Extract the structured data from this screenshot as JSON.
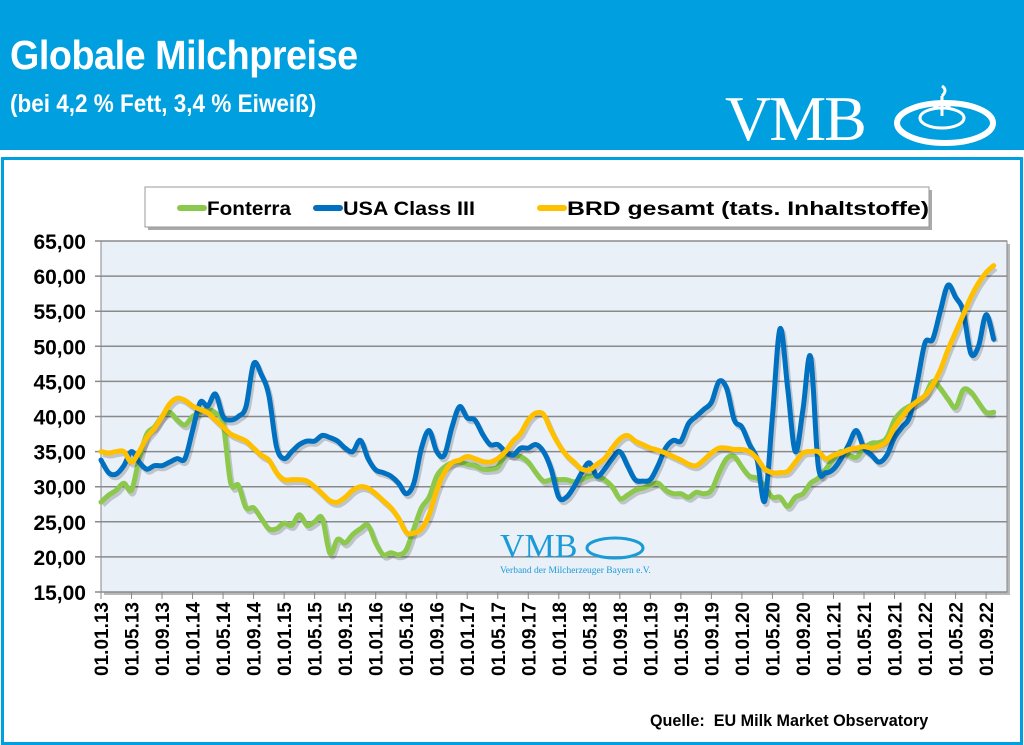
{
  "header": {
    "title": "Globale Milchpreise",
    "subtitle": "(bei 4,2 % Fett, 3,4 % Eiweiß)",
    "logo_text": "VMB"
  },
  "watermark": {
    "logo_text": "VMB",
    "caption": "Verband der Milcherzeuger Bayern e.V."
  },
  "source": "Quelle:  EU Milk Market Observatory",
  "colors": {
    "header": "#009fdf",
    "fonterra": "#8cc84b",
    "usa": "#0070c0",
    "brd": "#ffc000",
    "plot_bg": "#e9f0f8"
  },
  "chart_data": {
    "type": "line",
    "title": "",
    "xlabel": "",
    "ylabel": "",
    "ylim": [
      15,
      65
    ],
    "yticks": [
      "15,00",
      "20,00",
      "25,00",
      "30,00",
      "35,00",
      "40,00",
      "45,00",
      "50,00",
      "55,00",
      "60,00",
      "65,00"
    ],
    "xticks": [
      "01.01.13",
      "01.05.13",
      "01.09.13",
      "01.01.14",
      "01.05.14",
      "01.09.14",
      "01.01.15",
      "01.05.15",
      "01.09.15",
      "01.01.16",
      "01.05.16",
      "01.09.16",
      "01.01.17",
      "01.05.17",
      "01.09.17",
      "01.01.18",
      "01.05.18",
      "01.09.18",
      "01.01.19",
      "01.05.19",
      "01.09.19",
      "01.01.20",
      "01.05.20",
      "01.09.20",
      "01.01.21",
      "01.05.21",
      "01.09.21",
      "01.01.22",
      "01.05.22",
      "01.09.22"
    ],
    "x_start": "2013-01",
    "x_frequency": "monthly",
    "grid": true,
    "legend_position": "top",
    "series": [
      {
        "name": "Fonterra",
        "color": "#8cc84b",
        "values": [
          27.8,
          28.8,
          29.5,
          30.5,
          29.5,
          34,
          37.5,
          38.5,
          40,
          40.6,
          39.5,
          38.8,
          40,
          40.6,
          41,
          40.5,
          39,
          30.5,
          30.2,
          27,
          27,
          25.5,
          24,
          24,
          24.8,
          24.5,
          26,
          24.5,
          25,
          25.5,
          20.5,
          22.5,
          22,
          23.2,
          24,
          24.5,
          22,
          20.3,
          20.6,
          20.3,
          21,
          24,
          27,
          28.5,
          31.5,
          32.8,
          33.4,
          33.5,
          33.2,
          33,
          32.5,
          32.5,
          32.8,
          34.5,
          34.5,
          34.3,
          33.5,
          32,
          30.8,
          31,
          31,
          31,
          30.7,
          31,
          31.5,
          31.5,
          31,
          30,
          28.3,
          28.8,
          29.5,
          29.8,
          30.2,
          30.5,
          29.5,
          29,
          29,
          28.5,
          29.2,
          29,
          29.5,
          32,
          34,
          34.3,
          32.8,
          31.5,
          31.2,
          30,
          28.5,
          28.5,
          27.2,
          28.5,
          29,
          30.5,
          31.2,
          32.5,
          34,
          35,
          34.5,
          34.2,
          35.5,
          36.2,
          36.3,
          37,
          39.5,
          40.8,
          41.5,
          42,
          43,
          45,
          44,
          42.5,
          41.3,
          43.8,
          43.5,
          42,
          40.6,
          40.6
        ]
      },
      {
        "name": "USA Class III",
        "color": "#0070c0",
        "values": [
          33.8,
          32,
          31.8,
          33,
          35,
          33.5,
          32.5,
          33,
          33,
          33.5,
          34,
          34,
          38,
          42,
          41.5,
          43.2,
          40,
          39.5,
          40,
          41.4,
          47.5,
          46,
          43,
          35.7,
          34,
          35,
          36,
          36.5,
          36.5,
          37.3,
          37,
          36.5,
          35.5,
          35,
          36.6,
          34,
          32.4,
          32,
          31.5,
          30.5,
          29,
          30.5,
          35.5,
          38,
          35,
          34.5,
          38.5,
          41.4,
          39.8,
          39.5,
          37.5,
          36,
          36,
          35,
          34.5,
          35.5,
          35.5,
          36,
          35,
          32.5,
          28.5,
          28.5,
          30,
          32,
          33.4,
          31.5,
          32.5,
          34,
          35,
          33,
          31,
          30.8,
          31,
          33,
          35.5,
          36.6,
          36.5,
          39,
          40,
          41,
          42,
          45,
          44,
          39.5,
          38.5,
          36,
          33.8,
          28,
          40,
          52.5,
          44,
          35,
          41,
          48.5,
          33,
          32,
          32.5,
          34,
          36,
          38,
          35.5,
          34.5,
          33.5,
          34.5,
          37,
          38.5,
          40,
          45,
          50.5,
          51,
          55,
          58.7,
          57,
          55,
          49,
          50,
          54.5,
          51
        ]
      },
      {
        "name": "BRD gesamt (tats. Inhaltstoffe)",
        "color": "#ffc000",
        "values": [
          35,
          34.8,
          35,
          35,
          33.5,
          35,
          37,
          38.3,
          40,
          41.8,
          42.6,
          42.3,
          41.5,
          41,
          40.5,
          39.5,
          38.5,
          37.5,
          37,
          36.5,
          35.5,
          34.5,
          33.8,
          32,
          31,
          31,
          31,
          30.8,
          30,
          29,
          28,
          27.8,
          28.5,
          29.5,
          30,
          29.8,
          29,
          28,
          27,
          25.5,
          23.5,
          23.4,
          24,
          26,
          29.5,
          32,
          33.4,
          33.8,
          34.3,
          34,
          33.6,
          33.5,
          34,
          35,
          36.5,
          37.6,
          39.5,
          40.5,
          40.3,
          38,
          36,
          34.5,
          33.5,
          32.5,
          32.4,
          33.2,
          34,
          35.5,
          36.8,
          37.3,
          36.5,
          36,
          35.5,
          35.2,
          34.8,
          34.3,
          33.8,
          33.2,
          33,
          33.8,
          34.8,
          35.5,
          35.5,
          35.3,
          35.3,
          35,
          34,
          32.5,
          32,
          32,
          32.2,
          33.5,
          34.8,
          35,
          35,
          34,
          34.5,
          34.8,
          35.3,
          35.5,
          35.7,
          35.5,
          35.8,
          36.5,
          38.5,
          40,
          41.3,
          42.2,
          43,
          44.5,
          46.6,
          49.5,
          52,
          54.5,
          57,
          59,
          60.5,
          61.5
        ]
      }
    ]
  }
}
